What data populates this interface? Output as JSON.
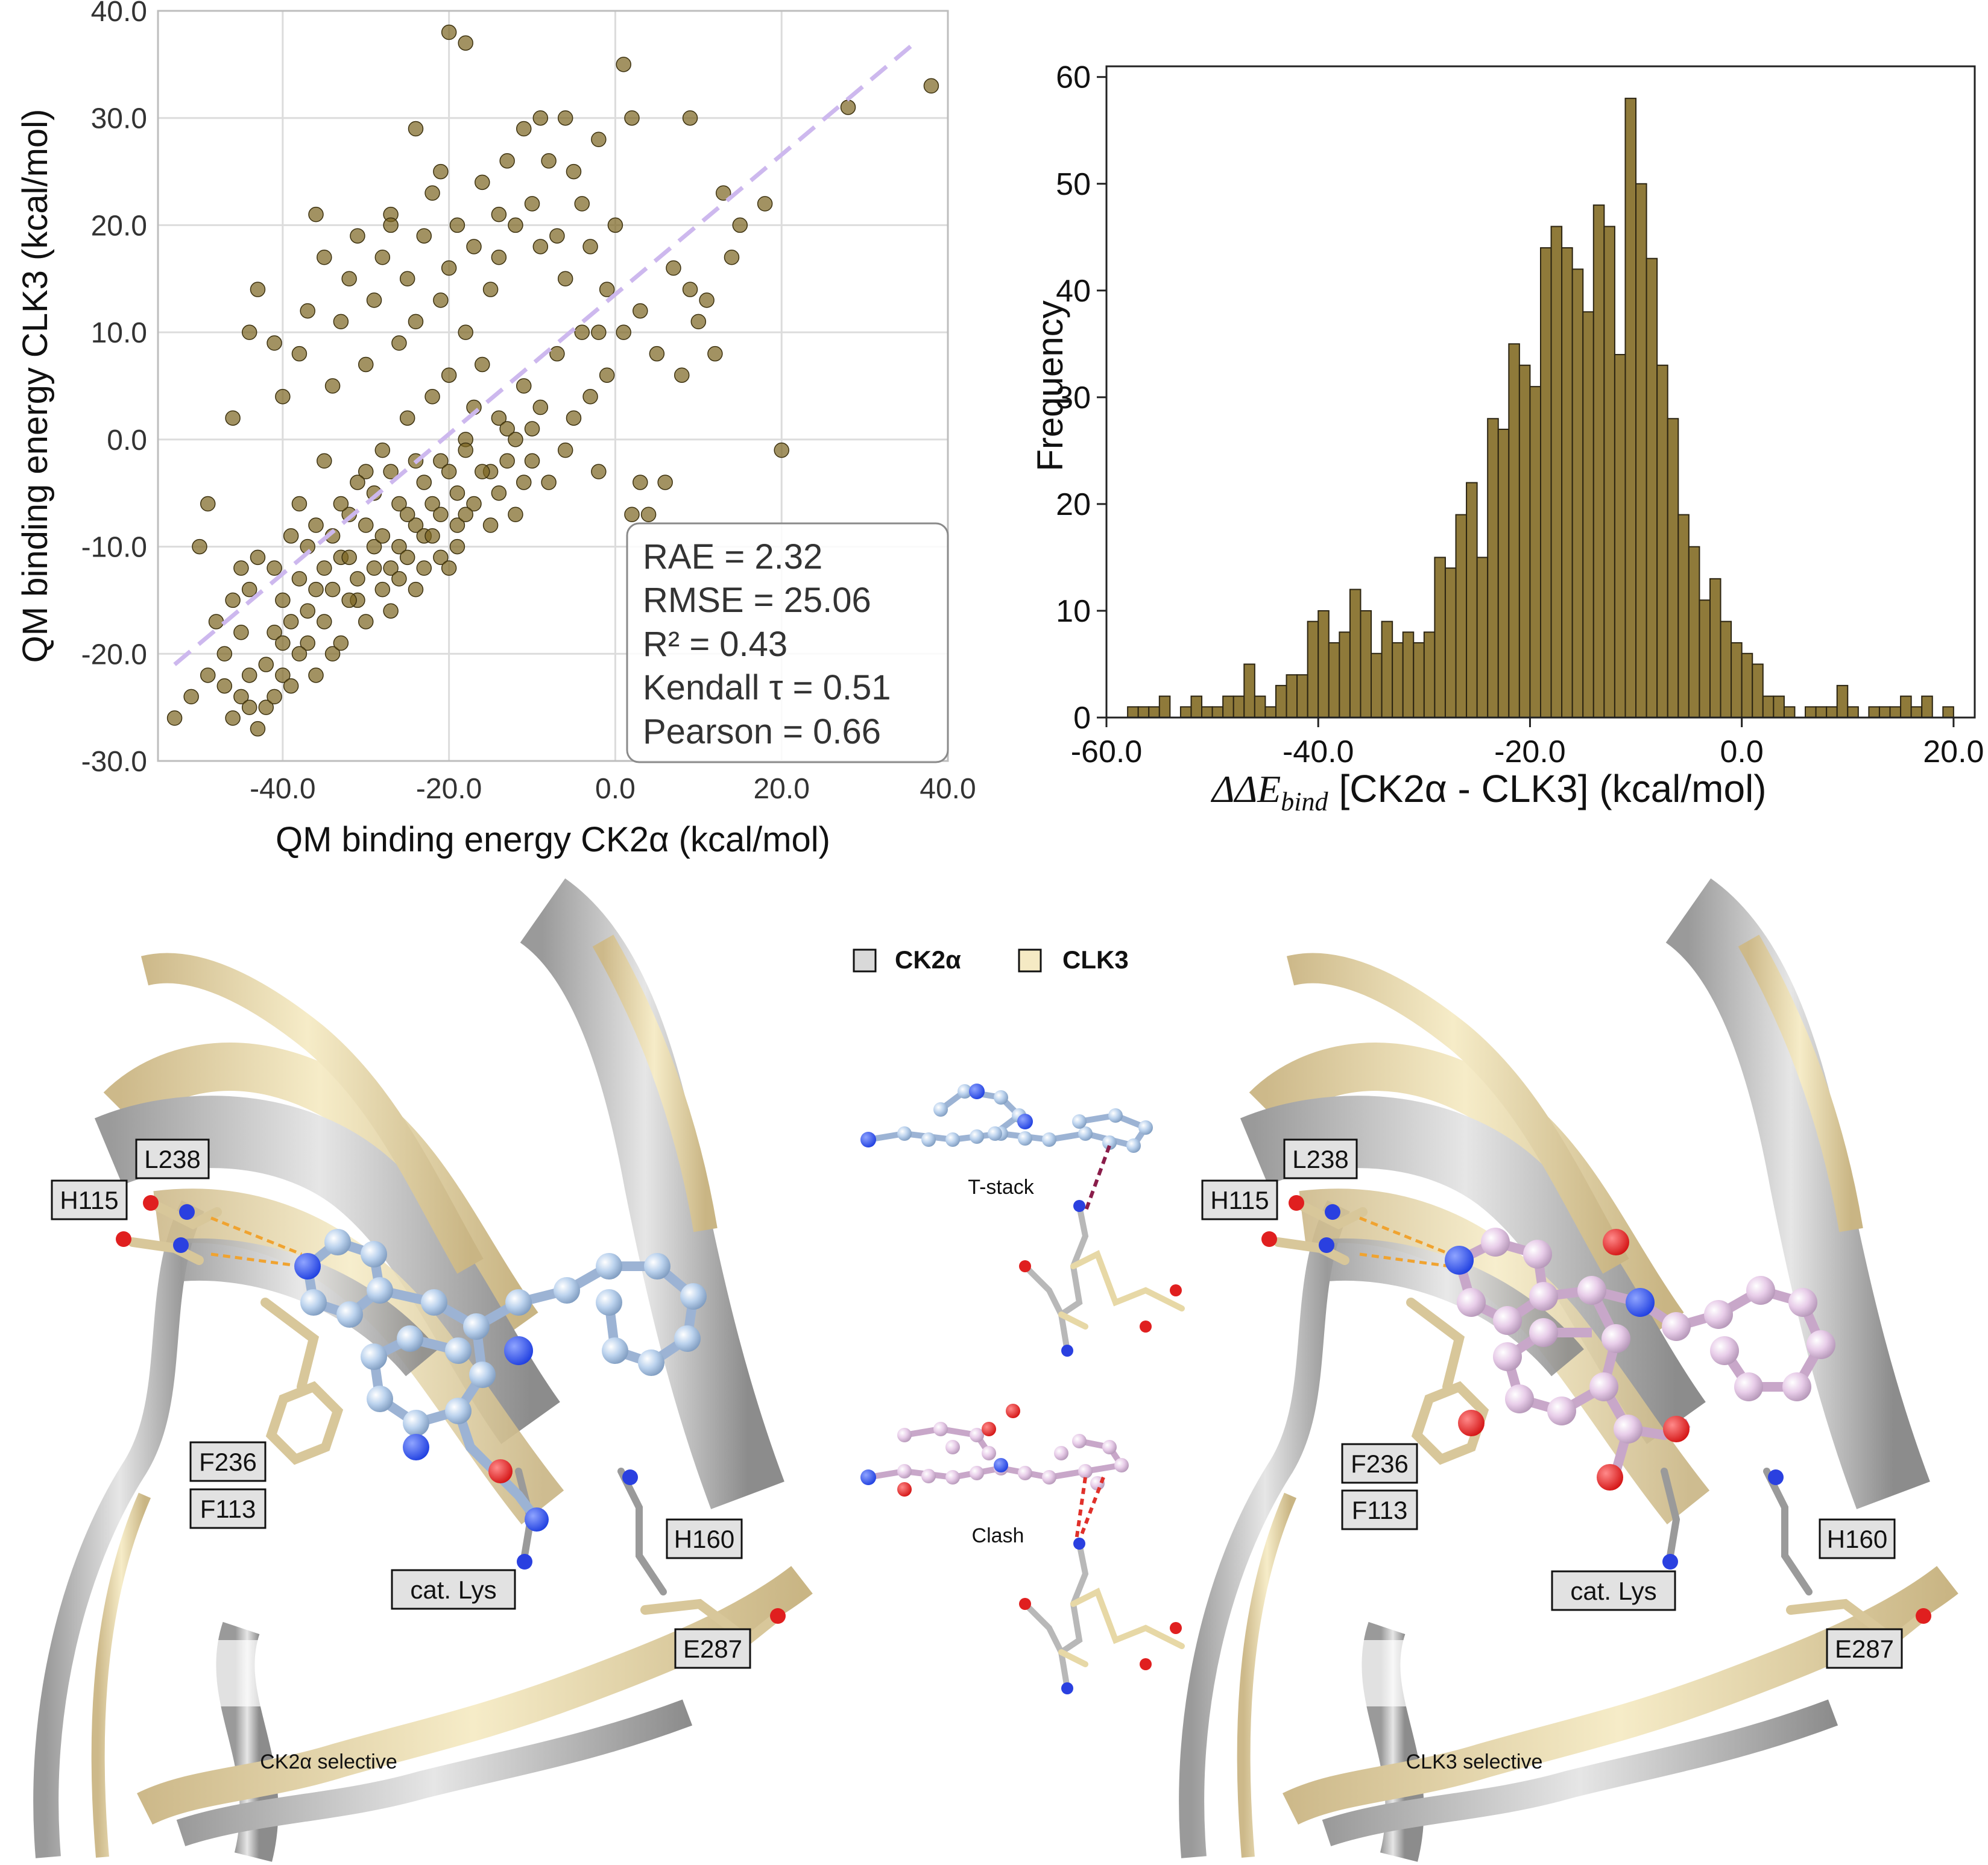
{
  "scatter": {
    "xlabel": "QM binding energy CK2α (kcal/mol)",
    "ylabel": "QM binding energy CLK3 (kcal/mol)",
    "x_ticks": [
      "-40.0",
      "-20.0",
      "0.0",
      "20.0",
      "40.0"
    ],
    "y_ticks": [
      "40.0",
      "30.0",
      "20.0",
      "10.0",
      "0.0",
      "-10.0",
      "-20.0",
      "-30.0"
    ],
    "stats": [
      "RAE = 2.32",
      "RMSE = 25.06",
      "R² = 0.43",
      "Kendall τ = 0.51",
      "Pearson = 0.66"
    ]
  },
  "histogram": {
    "xlabel_delta": "ΔΔ",
    "xlabel_e": "E",
    "xlabel_sub": "bind",
    "xlabel_rest": "[CK2α - CLK3] (kcal/mol)",
    "ylabel": "Frequency",
    "x_ticks": [
      "-60.0",
      "-40.0",
      "-20.0",
      "0.0",
      "20.0"
    ],
    "y_ticks": [
      "60",
      "50",
      "40",
      "30",
      "20",
      "10",
      "0"
    ]
  },
  "structures": {
    "legend": [
      "CK2α",
      "CLK3"
    ],
    "left_caption": "CK2α selective",
    "right_caption": "CLK3 selective",
    "t_stack": "T-stack",
    "clash": "Clash",
    "residues": [
      "L238",
      "H115",
      "F236",
      "F113",
      "cat. Lys",
      "H160",
      "E287"
    ]
  },
  "colors": {
    "marker": "#7a6420",
    "bar": "#8f7a3a",
    "fit_line": "#cdb8ee",
    "ck2a_ribbon": "#d9d9d9",
    "clk3_ribbon": "#f1e5bf",
    "ligand_blue": "#bcd3ee",
    "ligand_pink": "#e8cde9"
  },
  "chart_data": [
    {
      "type": "scatter",
      "xlim": [
        -55,
        40
      ],
      "ylim": [
        -30,
        40
      ],
      "grid": true,
      "fit_line": {
        "x": [
          -53,
          36
        ],
        "y": [
          -21,
          37
        ]
      },
      "stats_box_position": "bottom-right",
      "points": [
        [
          -53,
          -26
        ],
        [
          -50,
          -10
        ],
        [
          -49,
          -6
        ],
        [
          -47,
          -20
        ],
        [
          -46,
          -26
        ],
        [
          -45,
          -24
        ],
        [
          -45,
          -12
        ],
        [
          -44,
          -22
        ],
        [
          -43,
          -27
        ],
        [
          -42,
          -25
        ],
        [
          -41,
          -18
        ],
        [
          -40,
          -22
        ],
        [
          -39,
          -9
        ],
        [
          -38,
          -6
        ],
        [
          -37,
          -19
        ],
        [
          -36,
          -14
        ],
        [
          -35,
          -2
        ],
        [
          -34,
          -20
        ],
        [
          -33,
          -11
        ],
        [
          -32,
          -7
        ],
        [
          -31,
          -15
        ],
        [
          -30,
          -3
        ],
        [
          -29,
          -10
        ],
        [
          -28,
          -1
        ],
        [
          -27,
          -12
        ],
        [
          -26,
          -6
        ],
        [
          -25,
          2
        ],
        [
          -24,
          -8
        ],
        [
          -23,
          -4
        ],
        [
          -22,
          4
        ],
        [
          -21,
          -2
        ],
        [
          -20,
          6
        ],
        [
          -19,
          -5
        ],
        [
          -18,
          0
        ],
        [
          -17,
          3
        ],
        [
          -16,
          7
        ],
        [
          -15,
          -3
        ],
        [
          -14,
          2
        ],
        [
          -13,
          1
        ],
        [
          -12,
          -7
        ],
        [
          -11,
          5
        ],
        [
          -10,
          -2
        ],
        [
          -9,
          3
        ],
        [
          -8,
          -4
        ],
        [
          -7,
          8
        ],
        [
          -6,
          -1
        ],
        [
          -5,
          2
        ],
        [
          -4,
          10
        ],
        [
          -3,
          4
        ],
        [
          -2,
          -3
        ],
        [
          -1,
          6
        ],
        [
          -48,
          -17
        ],
        [
          -46,
          -15
        ],
        [
          -44,
          -14
        ],
        [
          -43,
          -11
        ],
        [
          -41,
          -12
        ],
        [
          -40,
          -15
        ],
        [
          -39,
          -17
        ],
        [
          -38,
          -13
        ],
        [
          -37,
          -10
        ],
        [
          -36,
          -8
        ],
        [
          -35,
          -12
        ],
        [
          -34,
          -9
        ],
        [
          -33,
          -6
        ],
        [
          -32,
          -11
        ],
        [
          -31,
          -4
        ],
        [
          -30,
          -8
        ],
        [
          -29,
          -5
        ],
        [
          -28,
          -9
        ],
        [
          -27,
          -3
        ],
        [
          -26,
          -10
        ],
        [
          -25,
          -7
        ],
        [
          -24,
          -2
        ],
        [
          -23,
          -9
        ],
        [
          -22,
          -6
        ],
        [
          -21,
          -11
        ],
        [
          -20,
          -3
        ],
        [
          -19,
          -8
        ],
        [
          -18,
          -1
        ],
        [
          -17,
          -6
        ],
        [
          -16,
          -3
        ],
        [
          -15,
          -8
        ],
        [
          -14,
          -5
        ],
        [
          -13,
          -2
        ],
        [
          -12,
          0
        ],
        [
          -11,
          -4
        ],
        [
          -10,
          1
        ],
        [
          -46,
          2
        ],
        [
          -44,
          10
        ],
        [
          -43,
          14
        ],
        [
          -41,
          9
        ],
        [
          -40,
          4
        ],
        [
          -38,
          8
        ],
        [
          -37,
          12
        ],
        [
          -36,
          21
        ],
        [
          -35,
          17
        ],
        [
          -34,
          5
        ],
        [
          -33,
          11
        ],
        [
          -32,
          15
        ],
        [
          -31,
          19
        ],
        [
          -30,
          7
        ],
        [
          -29,
          13
        ],
        [
          -28,
          17
        ],
        [
          -27,
          21
        ],
        [
          -26,
          9
        ],
        [
          -25,
          15
        ],
        [
          -24,
          11
        ],
        [
          -23,
          19
        ],
        [
          -22,
          23
        ],
        [
          -21,
          13
        ],
        [
          -20,
          16
        ],
        [
          -19,
          20
        ],
        [
          -18,
          10
        ],
        [
          -17,
          18
        ],
        [
          -16,
          24
        ],
        [
          -15,
          14
        ],
        [
          -14,
          17
        ],
        [
          -13,
          26
        ],
        [
          -12,
          20
        ],
        [
          -11,
          29
        ],
        [
          -10,
          22
        ],
        [
          -9,
          30
        ],
        [
          -8,
          26
        ],
        [
          -7,
          19
        ],
        [
          -6,
          30
        ],
        [
          -5,
          25
        ],
        [
          -4,
          22
        ],
        [
          -3,
          18
        ],
        [
          -2,
          28
        ],
        [
          -1,
          14
        ],
        [
          0,
          20
        ],
        [
          1,
          35
        ],
        [
          2,
          30
        ],
        [
          3,
          12
        ],
        [
          5,
          8
        ],
        [
          7,
          16
        ],
        [
          9,
          30
        ],
        [
          11,
          13
        ],
        [
          13,
          23
        ],
        [
          15,
          20
        ],
        [
          20,
          -1
        ],
        [
          38,
          33
        ],
        [
          -20,
          38
        ],
        [
          -18,
          37
        ],
        [
          -24,
          29
        ],
        [
          -21,
          25
        ],
        [
          -27,
          20
        ],
        [
          -14,
          21
        ],
        [
          -9,
          18
        ],
        [
          -6,
          15
        ],
        [
          -2,
          10
        ],
        [
          1,
          10
        ],
        [
          2,
          -7
        ],
        [
          3,
          -4
        ],
        [
          4,
          -7
        ],
        [
          6,
          -4
        ],
        [
          8,
          6
        ],
        [
          9,
          14
        ],
        [
          10,
          11
        ],
        [
          12,
          8
        ],
        [
          14,
          17
        ],
        [
          18,
          22
        ],
        [
          28,
          31
        ],
        [
          -51,
          -24
        ],
        [
          -49,
          -22
        ],
        [
          -47,
          -23
        ],
        [
          -45,
          -18
        ],
        [
          -44,
          -25
        ],
        [
          -42,
          -21
        ],
        [
          -41,
          -24
        ],
        [
          -40,
          -19
        ],
        [
          -39,
          -23
        ],
        [
          -38,
          -20
        ],
        [
          -37,
          -16
        ],
        [
          -36,
          -22
        ],
        [
          -35,
          -17
        ],
        [
          -34,
          -14
        ],
        [
          -33,
          -19
        ],
        [
          -32,
          -15
        ],
        [
          -31,
          -13
        ],
        [
          -30,
          -17
        ],
        [
          -29,
          -12
        ],
        [
          -28,
          -14
        ],
        [
          -27,
          -16
        ],
        [
          -26,
          -13
        ],
        [
          -25,
          -11
        ],
        [
          -24,
          -14
        ],
        [
          -23,
          -12
        ],
        [
          -22,
          -9
        ],
        [
          -21,
          -7
        ],
        [
          -20,
          -12
        ],
        [
          -19,
          -10
        ],
        [
          -18,
          -7
        ]
      ]
    },
    {
      "type": "histogram",
      "xlim": [
        -60,
        22
      ],
      "ylim": [
        0,
        61
      ],
      "bin_width": 1,
      "bins": [
        {
          "x": -58,
          "count": 1
        },
        {
          "x": -57,
          "count": 1
        },
        {
          "x": -56,
          "count": 1
        },
        {
          "x": -55,
          "count": 2
        },
        {
          "x": -54,
          "count": 0
        },
        {
          "x": -53,
          "count": 1
        },
        {
          "x": -52,
          "count": 2
        },
        {
          "x": -51,
          "count": 1
        },
        {
          "x": -50,
          "count": 1
        },
        {
          "x": -49,
          "count": 2
        },
        {
          "x": -48,
          "count": 2
        },
        {
          "x": -47,
          "count": 5
        },
        {
          "x": -46,
          "count": 2
        },
        {
          "x": -45,
          "count": 1
        },
        {
          "x": -44,
          "count": 3
        },
        {
          "x": -43,
          "count": 4
        },
        {
          "x": -42,
          "count": 4
        },
        {
          "x": -41,
          "count": 9
        },
        {
          "x": -40,
          "count": 10
        },
        {
          "x": -39,
          "count": 7
        },
        {
          "x": -38,
          "count": 8
        },
        {
          "x": -37,
          "count": 12
        },
        {
          "x": -36,
          "count": 10
        },
        {
          "x": -35,
          "count": 6
        },
        {
          "x": -34,
          "count": 9
        },
        {
          "x": -33,
          "count": 7
        },
        {
          "x": -32,
          "count": 8
        },
        {
          "x": -31,
          "count": 7
        },
        {
          "x": -30,
          "count": 8
        },
        {
          "x": -29,
          "count": 15
        },
        {
          "x": -28,
          "count": 14
        },
        {
          "x": -27,
          "count": 19
        },
        {
          "x": -26,
          "count": 22
        },
        {
          "x": -25,
          "count": 15
        },
        {
          "x": -24,
          "count": 28
        },
        {
          "x": -23,
          "count": 27
        },
        {
          "x": -22,
          "count": 35
        },
        {
          "x": -21,
          "count": 33
        },
        {
          "x": -20,
          "count": 31
        },
        {
          "x": -19,
          "count": 44
        },
        {
          "x": -18,
          "count": 46
        },
        {
          "x": -17,
          "count": 44
        },
        {
          "x": -16,
          "count": 42
        },
        {
          "x": -15,
          "count": 38
        },
        {
          "x": -14,
          "count": 48
        },
        {
          "x": -13,
          "count": 46
        },
        {
          "x": -12,
          "count": 34
        },
        {
          "x": -11,
          "count": 58
        },
        {
          "x": -10,
          "count": 50
        },
        {
          "x": -9,
          "count": 43
        },
        {
          "x": -8,
          "count": 33
        },
        {
          "x": -7,
          "count": 28
        },
        {
          "x": -6,
          "count": 19
        },
        {
          "x": -5,
          "count": 16
        },
        {
          "x": -4,
          "count": 11
        },
        {
          "x": -3,
          "count": 13
        },
        {
          "x": -2,
          "count": 9
        },
        {
          "x": -1,
          "count": 7
        },
        {
          "x": 0,
          "count": 6
        },
        {
          "x": 1,
          "count": 5
        },
        {
          "x": 2,
          "count": 2
        },
        {
          "x": 3,
          "count": 2
        },
        {
          "x": 4,
          "count": 1
        },
        {
          "x": 5,
          "count": 0
        },
        {
          "x": 6,
          "count": 1
        },
        {
          "x": 7,
          "count": 1
        },
        {
          "x": 8,
          "count": 1
        },
        {
          "x": 9,
          "count": 3
        },
        {
          "x": 10,
          "count": 1
        },
        {
          "x": 11,
          "count": 0
        },
        {
          "x": 12,
          "count": 1
        },
        {
          "x": 13,
          "count": 1
        },
        {
          "x": 14,
          "count": 1
        },
        {
          "x": 15,
          "count": 2
        },
        {
          "x": 16,
          "count": 1
        },
        {
          "x": 17,
          "count": 2
        },
        {
          "x": 18,
          "count": 0
        },
        {
          "x": 19,
          "count": 1
        }
      ]
    }
  ]
}
